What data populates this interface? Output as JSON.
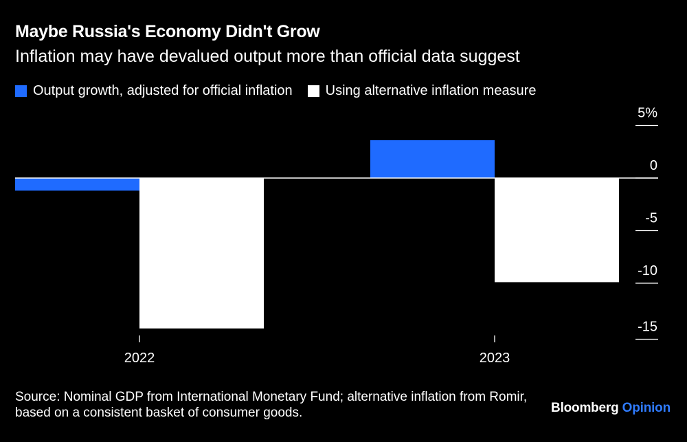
{
  "header": {
    "title": "Maybe Russia's Economy Didn't Grow",
    "subtitle": "Inflation may have devalued output more than official data suggest"
  },
  "colors": {
    "background": "#000000",
    "series_official": "#1f6bff",
    "series_alternative": "#ffffff",
    "brand_accent": "#2f7bff"
  },
  "chart_data": {
    "type": "bar",
    "categories": [
      "2022",
      "2023"
    ],
    "series": [
      {
        "name": "Output growth, adjusted for official inflation",
        "values": [
          -1.2,
          3.6
        ],
        "color": "#1f6bff"
      },
      {
        "name": "Using alternative inflation measure",
        "values": [
          -14.3,
          -9.9
        ],
        "color": "#ffffff"
      }
    ],
    "yticks": [
      {
        "value": 5,
        "label": "5%"
      },
      {
        "value": 0,
        "label": "0"
      },
      {
        "value": -5,
        "label": "-5"
      },
      {
        "value": -10,
        "label": "-10"
      },
      {
        "value": -15,
        "label": "-15"
      }
    ],
    "ylim": [
      -15,
      5
    ],
    "title": "Maybe Russia's Economy Didn't Grow",
    "xlabel": "",
    "ylabel": "",
    "legend_position": "top-left",
    "grid": false
  },
  "footer": {
    "source": "Source: Nominal GDP from International Monetary Fund; alternative inflation from Romir, based on a consistent basket of consumer goods.",
    "brand_main": "Bloomberg",
    "brand_accent": "Opinion"
  }
}
